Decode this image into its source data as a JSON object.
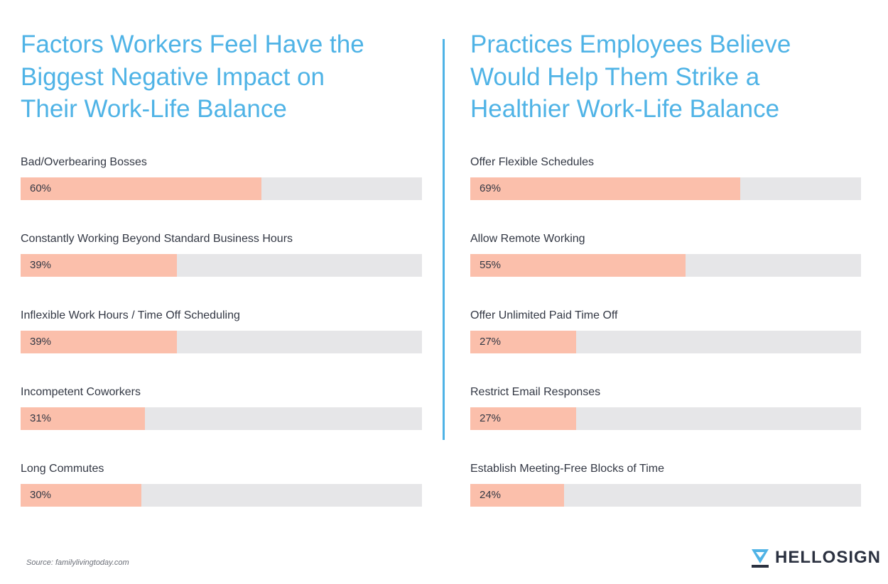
{
  "chart_data": [
    {
      "type": "bar",
      "orientation": "horizontal",
      "title": "Factors Workers Feel Have the Biggest Negative Impact on Their Work-Life Balance",
      "title_lines": [
        "Factors Workers Feel Have the",
        "Biggest Negative Impact on",
        "Their Work-Life Balance"
      ],
      "categories": [
        "Bad/Overbearing Bosses",
        "Constantly Working Beyond Standard Business Hours",
        "Inflexible Work Hours / Time Off Scheduling",
        "Incompetent Coworkers",
        "Long Commutes"
      ],
      "values": [
        60,
        39,
        39,
        31,
        30
      ],
      "labels": [
        "60%",
        "39%",
        "39%",
        "31%",
        "30%"
      ],
      "unit": "%",
      "xlim": [
        0,
        100
      ]
    },
    {
      "type": "bar",
      "orientation": "horizontal",
      "title": "Practices Employees Believe Would Help Them Strike a Healthier Work-Life Balance",
      "title_lines": [
        "Practices Employees Believe",
        "Would Help Them Strike a",
        "Healthier Work-Life Balance"
      ],
      "categories": [
        "Offer Flexible Schedules",
        "Allow Remote Working",
        "Offer Unlimited Paid Time Off",
        "Restrict Email Responses",
        "Establish Meeting-Free Blocks of Time"
      ],
      "values": [
        69,
        55,
        27,
        27,
        24
      ],
      "labels": [
        "69%",
        "55%",
        "27%",
        "27%",
        "24%"
      ],
      "unit": "%",
      "xlim": [
        0,
        100
      ]
    }
  ],
  "footer": {
    "source": "Source: familylivingtoday.com",
    "brand": "HELLOSIGN",
    "brand_icon": "hellosign-logo-icon"
  },
  "colors": {
    "title": "#4fb3e6",
    "bar_fill": "#fbbfab",
    "bar_track": "#e6e6e8",
    "text": "#333844",
    "divider": "#4fb3e6",
    "brand": "#2b3140"
  }
}
